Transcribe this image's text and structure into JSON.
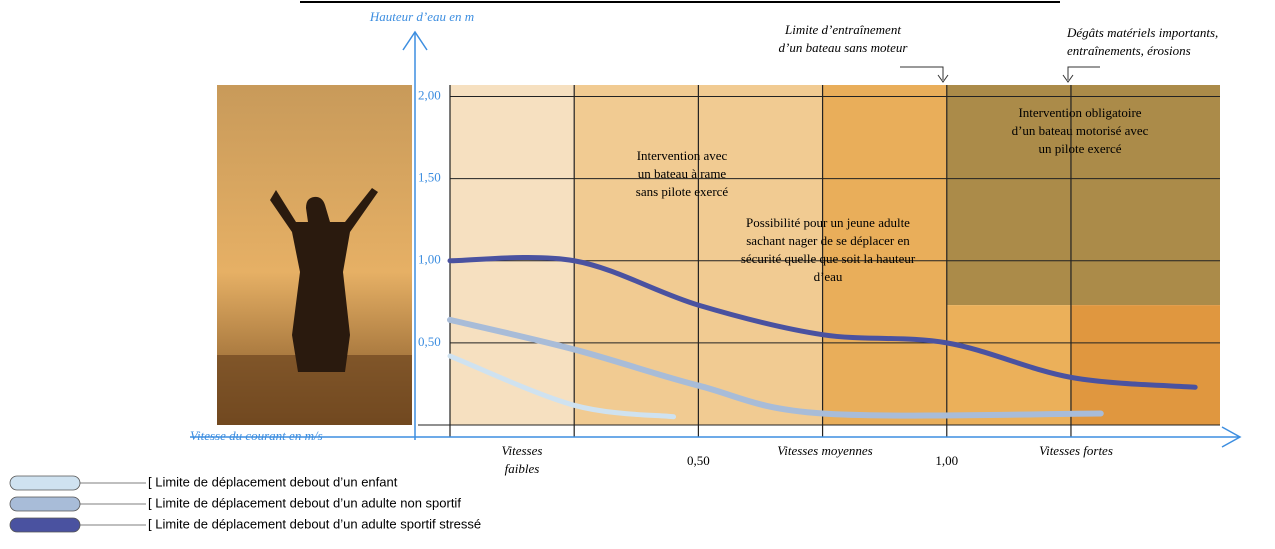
{
  "chart_data": {
    "type": "line",
    "y_label": "Hauteur d’eau en m",
    "x_label": "Vitesse du courant en m/s",
    "xlim": [
      0,
      1.55
    ],
    "ylim": [
      0,
      2.07
    ],
    "xticks": [
      {
        "value": 0.5,
        "label": "0,50"
      },
      {
        "value": 1,
        "label": "1,00"
      }
    ],
    "yticks": [
      {
        "value": 0.5,
        "label": "0,50"
      },
      {
        "value": 1,
        "label": "1,00"
      },
      {
        "value": 1.5,
        "label": "1,50"
      },
      {
        "value": 2,
        "label": "2,00"
      }
    ],
    "xgrid": [
      0,
      0.25,
      0.5,
      0.75,
      1,
      1.25
    ],
    "grid": true,
    "zones": [
      {
        "x": [
          0,
          0.25
        ],
        "y": [
          0,
          2.07
        ],
        "color": "#f6e0c0"
      },
      {
        "x": [
          0.25,
          0.75
        ],
        "y": [
          0,
          2.07
        ],
        "color": "#f1cb92"
      },
      {
        "x": [
          0.75,
          1
        ],
        "y": [
          0,
          2.07
        ],
        "color": "#e9ae5a"
      },
      {
        "x": [
          1,
          1.55
        ],
        "y": [
          0.73,
          2.07
        ],
        "color": "#ab8b49"
      },
      {
        "x": [
          1,
          1.25
        ],
        "y": [
          0,
          0.73
        ],
        "color": "#ebb05a"
      },
      {
        "x": [
          1.25,
          1.55
        ],
        "y": [
          0,
          0.73
        ],
        "color": "#e0973f"
      }
    ],
    "speed_labels": [
      [
        "Vitesses",
        "faibles"
      ],
      [
        "Vitesses moyennes"
      ],
      [
        "Vitesses fortes"
      ]
    ],
    "annotations": {
      "limit_boat": [
        "Limite d’entraînement",
        "d’un bateau sans moteur"
      ],
      "damage": [
        "Dégâts matériels importants,",
        "entraînements, érosions"
      ],
      "rowboat": [
        "Intervention avec",
        "un bateau à rame",
        "sans pilote exercé"
      ],
      "swimmer": [
        "Possibilité pour un jeune adulte",
        "sachant nager de se déplacer en",
        "sécurité quelle que soit la hauteur",
        "d’eau"
      ],
      "motorboat": [
        "Intervention obligatoire",
        "d’un bateau motorisé avec",
        "un pilote exercé"
      ]
    },
    "series": [
      {
        "name": "[ Limite de déplacement debout d’un enfant",
        "color": "#cfe2f0",
        "x": [
          0,
          0.25,
          0.45
        ],
        "values": [
          0.42,
          0.12,
          0.05
        ]
      },
      {
        "name": "[ Limite de déplacement debout d’un adulte non sportif",
        "color": "#a8bcd8",
        "x": [
          0,
          0.25,
          0.5,
          0.75,
          1.31
        ],
        "values": [
          0.64,
          0.46,
          0.24,
          0.07,
          0.07
        ]
      },
      {
        "name": "[ Limite de déplacement debout d’un adulte sportif stressé",
        "color": "#4a52a0",
        "x": [
          0,
          0.25,
          0.5,
          0.75,
          1,
          1.25,
          1.5
        ],
        "values": [
          1,
          1,
          0.73,
          0.55,
          0.5,
          0.29,
          0.23
        ]
      }
    ]
  }
}
